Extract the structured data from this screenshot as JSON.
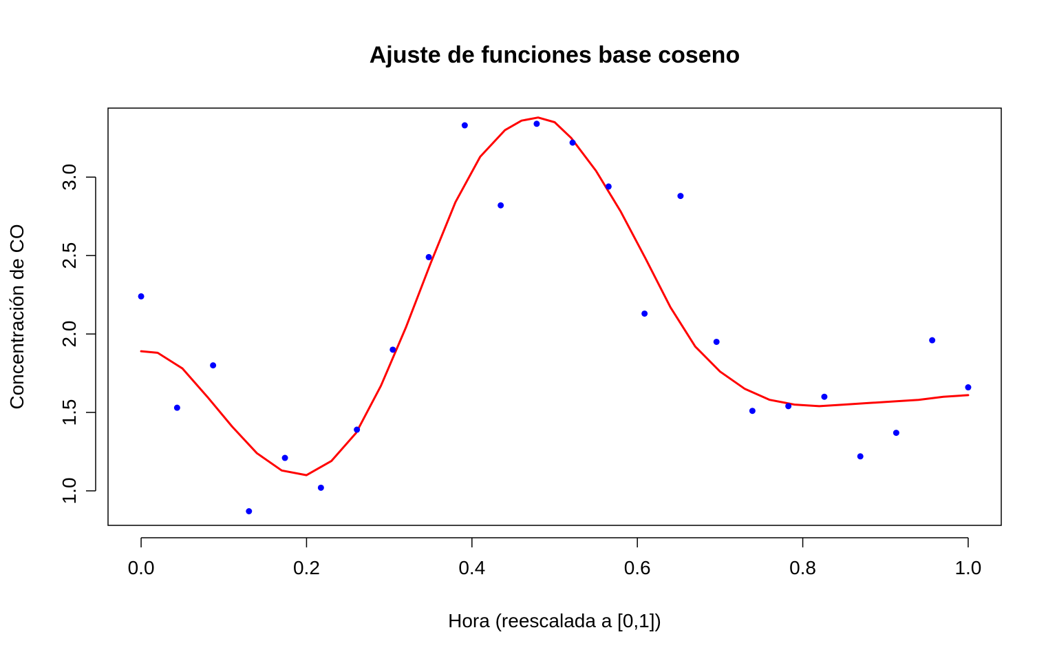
{
  "chart_data": {
    "type": "scatter",
    "title": "Ajuste de funciones base coseno",
    "xlabel": "Hora (reescalada a [0,1])",
    "ylabel": "Concentración de CO",
    "xlim": [
      -0.04,
      1.04
    ],
    "ylim": [
      0.78,
      3.44
    ],
    "x_ticks": [
      0.0,
      0.2,
      0.4,
      0.6,
      0.8,
      1.0
    ],
    "x_tick_labels": [
      "0.0",
      "0.2",
      "0.4",
      "0.6",
      "0.8",
      "1.0"
    ],
    "y_ticks": [
      1.0,
      1.5,
      2.0,
      2.5,
      3.0
    ],
    "y_tick_labels": [
      "1.0",
      "1.5",
      "2.0",
      "2.5",
      "3.0"
    ],
    "grid": false,
    "legend": "none",
    "colors": {
      "points": "#0000ff",
      "fit": "#ff0000",
      "axes": "#000000"
    },
    "series": [
      {
        "kind": "points",
        "x": [
          0.0,
          0.0435,
          0.087,
          0.1304,
          0.1739,
          0.2174,
          0.2609,
          0.3043,
          0.3478,
          0.3913,
          0.4348,
          0.4783,
          0.5217,
          0.5652,
          0.6087,
          0.6522,
          0.6957,
          0.7391,
          0.7826,
          0.8261,
          0.8696,
          0.913,
          0.9565,
          1.0
        ],
        "y": [
          2.24,
          1.53,
          1.8,
          0.87,
          1.21,
          1.02,
          1.39,
          1.9,
          2.49,
          3.33,
          2.82,
          3.34,
          3.22,
          2.94,
          2.13,
          2.88,
          1.95,
          1.51,
          1.54,
          1.6,
          1.22,
          1.37,
          1.96,
          1.66
        ]
      },
      {
        "kind": "line",
        "x": [
          0.0,
          0.02,
          0.05,
          0.08,
          0.11,
          0.14,
          0.17,
          0.2,
          0.23,
          0.26,
          0.29,
          0.32,
          0.35,
          0.38,
          0.41,
          0.44,
          0.46,
          0.48,
          0.5,
          0.52,
          0.55,
          0.58,
          0.61,
          0.64,
          0.67,
          0.7,
          0.73,
          0.76,
          0.79,
          0.82,
          0.85,
          0.88,
          0.91,
          0.94,
          0.97,
          1.0
        ],
        "y": [
          1.89,
          1.88,
          1.78,
          1.6,
          1.41,
          1.24,
          1.13,
          1.1,
          1.19,
          1.37,
          1.67,
          2.04,
          2.45,
          2.84,
          3.13,
          3.3,
          3.36,
          3.38,
          3.35,
          3.25,
          3.04,
          2.78,
          2.48,
          2.17,
          1.92,
          1.76,
          1.65,
          1.58,
          1.55,
          1.54,
          1.55,
          1.56,
          1.57,
          1.58,
          1.6,
          1.61
        ]
      }
    ]
  }
}
